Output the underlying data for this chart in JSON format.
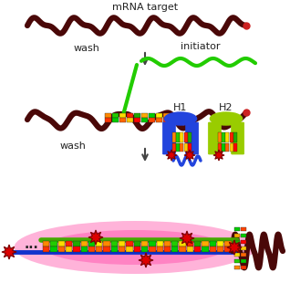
{
  "bg_color": "#ffffff",
  "mrna_label": "mRNA target",
  "wash_label": "wash",
  "initiator_label": "initiator",
  "h1_label": "H1",
  "h2_label": "H2",
  "dots_label": "...",
  "mrna_color": "#4a0808",
  "initiator_color": "#22cc00",
  "star_color": "#cc0000",
  "star_ring_color": "#660000",
  "blue_strand_color": "#1133cc",
  "yg_color": "#99cc00",
  "box_colors_top": [
    "#ff8800",
    "#22cc00",
    "#ffdd00",
    "#ff2200",
    "#22aa00",
    "#ffaa00",
    "#00cc00",
    "#ffee00"
  ],
  "box_colors_bot": [
    "#ff3300",
    "#00cc00",
    "#ff6600",
    "#ffcc00",
    "#ff0000",
    "#00cc00",
    "#ff4400",
    "#ff6600"
  ],
  "pink_glow": "#ff69b4",
  "arrow_color": "#444444",
  "text_color": "#222222"
}
